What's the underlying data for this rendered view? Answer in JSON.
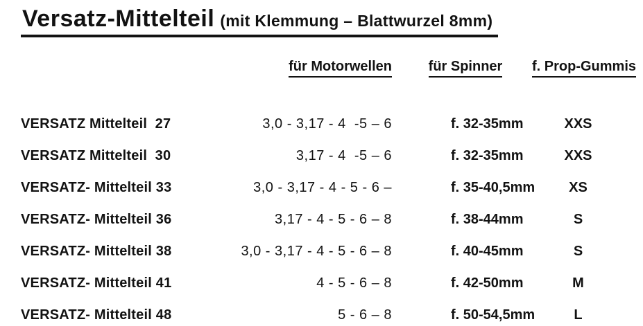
{
  "title": {
    "main": "Versatz-Mittelteil",
    "sub": "(mit Klemmung – Blattwurzel 8mm)"
  },
  "columns": {
    "motorwellen": "für Motorwellen",
    "spinner": "für Spinner",
    "prop_gummis": "f. Prop-Gummis"
  },
  "rows": [
    {
      "name": "VERSATZ Mittelteil  27",
      "motorwellen": "3,0 - 3,17 - 4  -5 – 6",
      "spinner": "f. 32-35mm",
      "prop_gummi": "XXS"
    },
    {
      "name": "VERSATZ Mittelteil  30",
      "motorwellen": "3,17 - 4  -5 – 6",
      "spinner": "f. 32-35mm",
      "prop_gummi": "XXS"
    },
    {
      "name": "VERSATZ- Mittelteil 33",
      "motorwellen": "3,0 - 3,17 - 4 - 5 - 6 –",
      "spinner": "f. 35-40,5mm",
      "prop_gummi": "XS"
    },
    {
      "name": "VERSATZ- Mittelteil 36",
      "motorwellen": "3,17 - 4 - 5 - 6 – 8",
      "spinner": "f. 38-44mm",
      "prop_gummi": "S"
    },
    {
      "name": "VERSATZ- Mittelteil 38",
      "motorwellen": "3,0 - 3,17 - 4 - 5 - 6 – 8",
      "spinner": "f. 40-45mm",
      "prop_gummi": "S"
    },
    {
      "name": "VERSATZ- Mittelteil 41",
      "motorwellen": "4 - 5 - 6 – 8",
      "spinner": "f. 42-50mm",
      "prop_gummi": "M"
    },
    {
      "name": "VERSATZ- Mittelteil 48",
      "motorwellen": "5 - 6 – 8",
      "spinner": "f. 50-54,5mm",
      "prop_gummi": "L"
    }
  ]
}
